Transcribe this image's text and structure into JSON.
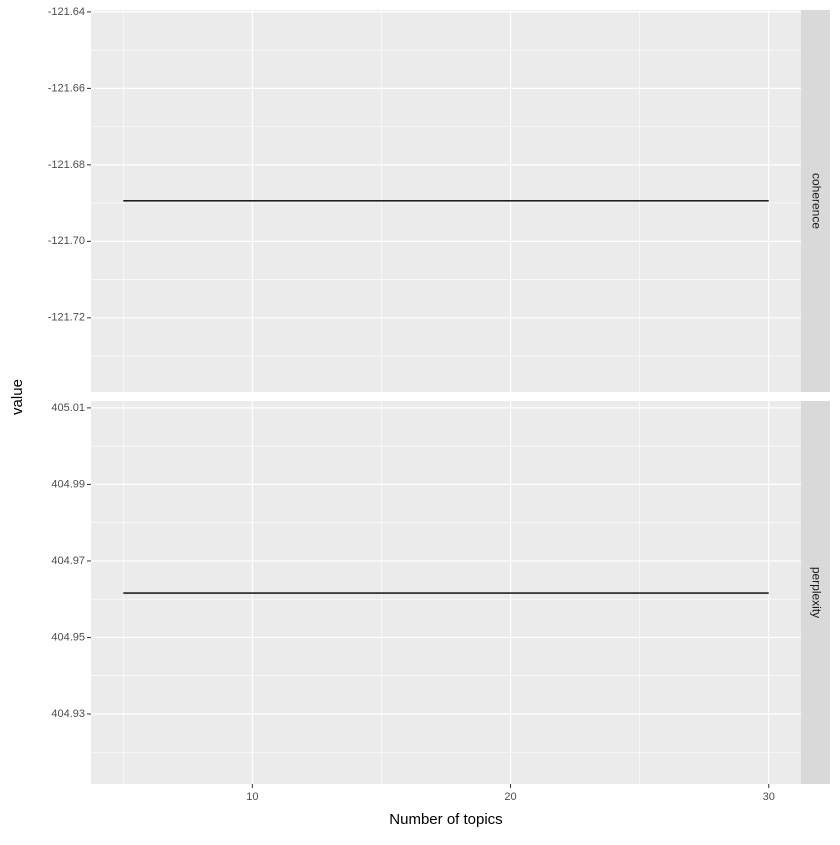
{
  "chart_data": [
    {
      "type": "line",
      "facet": "coherence",
      "ylabel": "value",
      "x": [
        5,
        10,
        15,
        20,
        25,
        30
      ],
      "values": [
        -121.6894,
        -121.6894,
        -121.6894,
        -121.6894,
        -121.6894,
        -121.6894
      ],
      "color": "#000000",
      "xlim": [
        3.75,
        31.25
      ],
      "xticks": [
        10,
        20,
        30
      ],
      "ylim": [
        -121.7394,
        -121.6395
      ],
      "yticks": [
        -121.64,
        -121.66,
        -121.68,
        {
          "value": -121.7,
          "label": "-121.70"
        },
        -121.72
      ],
      "grid": true
    },
    {
      "type": "line",
      "facet": "perplexity",
      "xlabel": "Number of topics",
      "x": [
        5,
        10,
        15,
        20,
        25,
        30
      ],
      "values": [
        404.9616,
        404.9616,
        404.9616,
        404.9616,
        404.9616,
        404.9616
      ],
      "color": "#000000",
      "xlim": [
        3.75,
        31.25
      ],
      "xticks": [
        10,
        20,
        30
      ],
      "ylim": [
        404.9117,
        405.0118
      ],
      "yticks": [
        405.01,
        404.99,
        404.97,
        404.95,
        404.93
      ],
      "grid": true
    }
  ]
}
